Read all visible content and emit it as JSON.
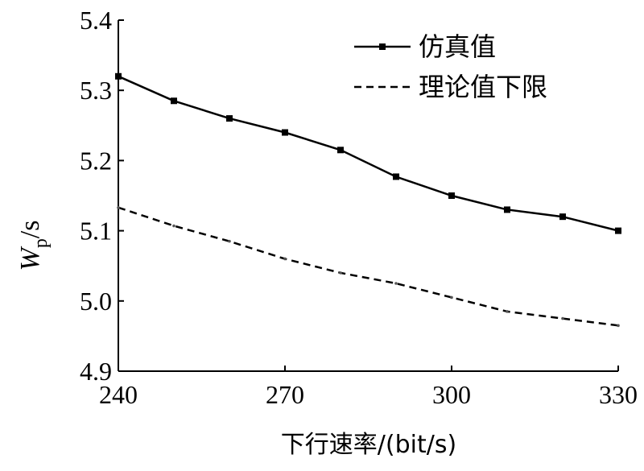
{
  "chart_data": {
    "type": "line",
    "xlabel": "下行速率/(bit/s)",
    "ylabel_main": "W",
    "ylabel_sub": "p",
    "ylabel_unit": "/s",
    "xlim": [
      240,
      330
    ],
    "ylim": [
      4.9,
      5.4
    ],
    "x_ticks": [
      240,
      270,
      300,
      330
    ],
    "x_tick_labels": [
      "240",
      "270",
      "300",
      "330"
    ],
    "y_ticks": [
      4.9,
      5.0,
      5.1,
      5.2,
      5.3,
      5.4
    ],
    "y_tick_labels": [
      "4.9",
      "5.0",
      "5.1",
      "5.2",
      "5.3",
      "5.4"
    ],
    "grid": false,
    "legend_position": "top-right",
    "x": [
      240,
      250,
      260,
      270,
      280,
      290,
      300,
      310,
      320,
      330
    ],
    "series": [
      {
        "name": "仿真值",
        "style": "solid",
        "marker": "square",
        "values": [
          5.32,
          5.285,
          5.26,
          5.24,
          5.215,
          5.177,
          5.15,
          5.13,
          5.12,
          5.1
        ]
      },
      {
        "name": "理论值下限",
        "style": "dashed",
        "marker": "none",
        "values": [
          5.133,
          5.107,
          5.085,
          5.06,
          5.04,
          5.025,
          5.005,
          4.985,
          4.975,
          4.965
        ]
      }
    ]
  }
}
